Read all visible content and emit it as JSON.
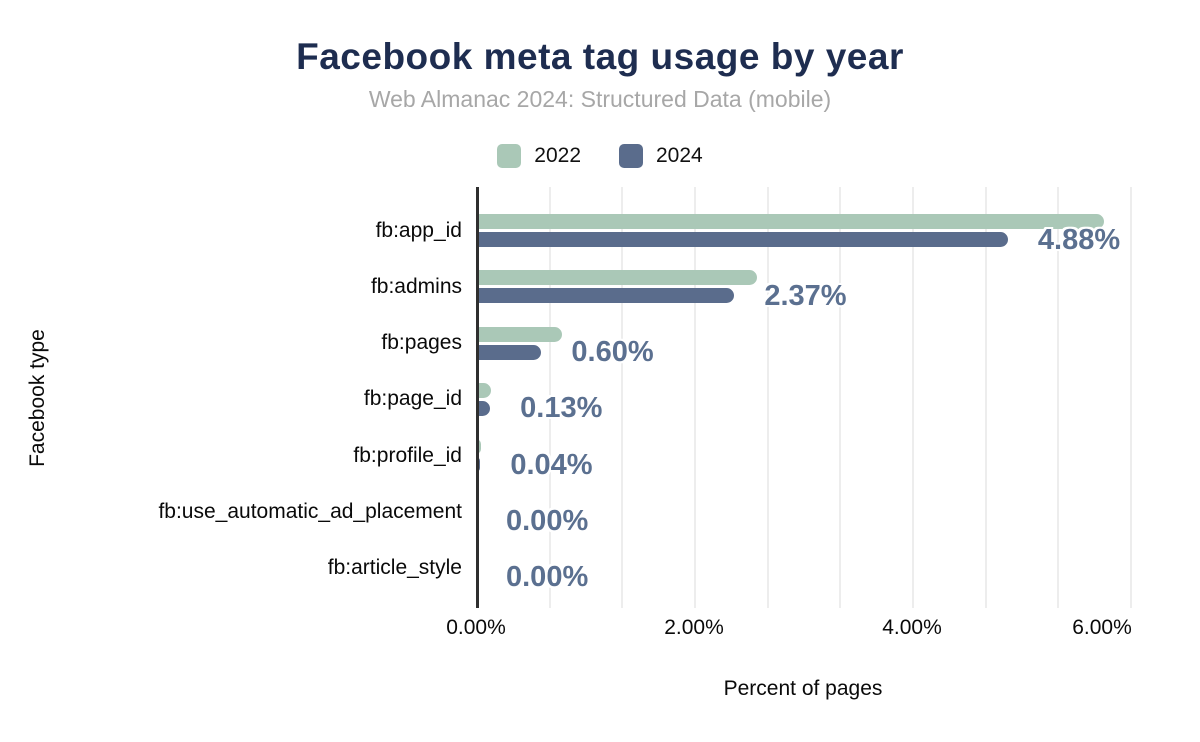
{
  "title": "Facebook meta tag usage by year",
  "subtitle": "Web Almanac 2024: Structured Data (mobile)",
  "legend": {
    "items": [
      {
        "label": "2022",
        "color": "#aac8b7"
      },
      {
        "label": "2024",
        "color": "#5a6c8c"
      }
    ]
  },
  "colors": {
    "background": "#ffffff",
    "title": "#1e2d50",
    "subtitle": "#a7a7a7",
    "series_2022": "#aac8b7",
    "series_2024": "#5a6c8c",
    "value_label": "#5b7090",
    "gridline": "#ededed",
    "axis_line": "#2f2f2f",
    "tick_text": "#0a0a0a"
  },
  "chart_data": {
    "type": "bar",
    "orientation": "horizontal",
    "title": "Facebook meta tag usage by year",
    "subtitle": "Web Almanac 2024: Structured Data (mobile)",
    "xlabel": "Percent of pages",
    "ylabel": "Facebook type",
    "xlim": [
      0,
      6
    ],
    "grid": "vertical minor gridlines, step 0.6667%",
    "grid_minor_step_pct": 0.6667,
    "legend_position": "top",
    "categories": [
      "fb:app_id",
      "fb:admins",
      "fb:pages",
      "fb:page_id",
      "fb:profile_id",
      "fb:use_automatic_ad_placement",
      "fb:article_style"
    ],
    "series": [
      {
        "name": "2022",
        "color": "#aac8b7",
        "values": [
          5.76,
          2.58,
          0.79,
          0.14,
          0.05,
          0.0,
          0.0
        ],
        "labels_shown": false
      },
      {
        "name": "2024",
        "color": "#5a6c8c",
        "values": [
          4.88,
          2.37,
          0.6,
          0.13,
          0.04,
          0.0,
          0.0
        ],
        "labels_shown": true,
        "data_labels": [
          "4.88%",
          "2.37%",
          "0.60%",
          "0.13%",
          "0.04%",
          "0.00%",
          "0.00%"
        ]
      }
    ],
    "x_ticks": [
      {
        "value": 0,
        "label": "0.00%"
      },
      {
        "value": 2,
        "label": "2.00%"
      },
      {
        "value": 4,
        "label": "4.00%"
      },
      {
        "value": 6,
        "label": "6.00%"
      }
    ]
  }
}
